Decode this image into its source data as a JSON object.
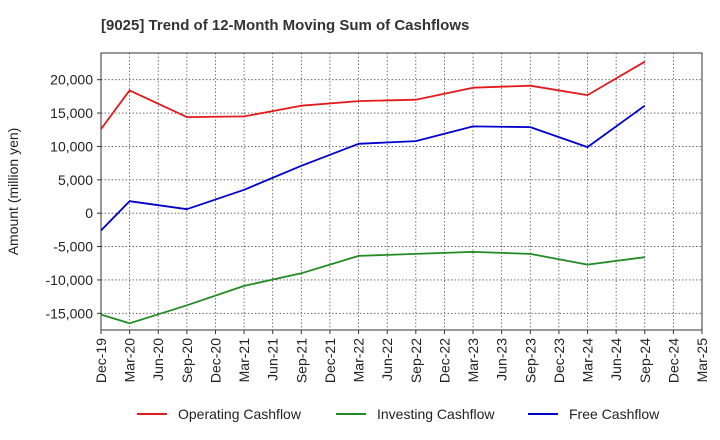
{
  "chart_data": {
    "type": "line",
    "title": "[9025]  Trend of 12-Month Moving Sum of Cashflows",
    "xlabel": "",
    "ylabel": "Amount (million yen)",
    "categories": [
      "Dec-19",
      "Mar-20",
      "Jun-20",
      "Sep-20",
      "Dec-20",
      "Mar-21",
      "Jun-21",
      "Sep-21",
      "Dec-21",
      "Mar-22",
      "Jun-22",
      "Sep-22",
      "Dec-22",
      "Mar-23",
      "Jun-23",
      "Sep-23",
      "Dec-23",
      "Mar-24",
      "Jun-24",
      "Sep-24",
      "Dec-24",
      "Mar-25"
    ],
    "ylim": [
      -17500,
      24000
    ],
    "yticks": [
      -15000,
      -10000,
      -5000,
      0,
      5000,
      10000,
      15000,
      20000
    ],
    "ytick_labels": [
      "-15,000",
      "-10,000",
      "-5,000",
      "0",
      "5,000",
      "10,000",
      "15,000",
      "20,000"
    ],
    "grid": true,
    "legend_position": "bottom",
    "series": [
      {
        "name": "Operating Cashflow",
        "color": "#e31a1c",
        "values": [
          12600,
          18400,
          null,
          14400,
          null,
          14500,
          null,
          16100,
          null,
          16800,
          null,
          17000,
          null,
          18800,
          null,
          19100,
          null,
          17700,
          null,
          22700,
          null,
          null
        ]
      },
      {
        "name": "Investing Cashflow",
        "color": "#228b22",
        "values": [
          -15200,
          -16500,
          null,
          -13800,
          null,
          -10900,
          null,
          -9000,
          null,
          -6400,
          null,
          -6100,
          null,
          -5800,
          null,
          -6100,
          null,
          -7700,
          null,
          -6600,
          null,
          null
        ]
      },
      {
        "name": "Free Cashflow",
        "color": "#0000cc",
        "values": [
          -2600,
          1800,
          null,
          600,
          null,
          3500,
          null,
          7100,
          null,
          10400,
          null,
          10800,
          null,
          13000,
          null,
          12900,
          null,
          9900,
          null,
          16100,
          null,
          null
        ]
      }
    ]
  }
}
